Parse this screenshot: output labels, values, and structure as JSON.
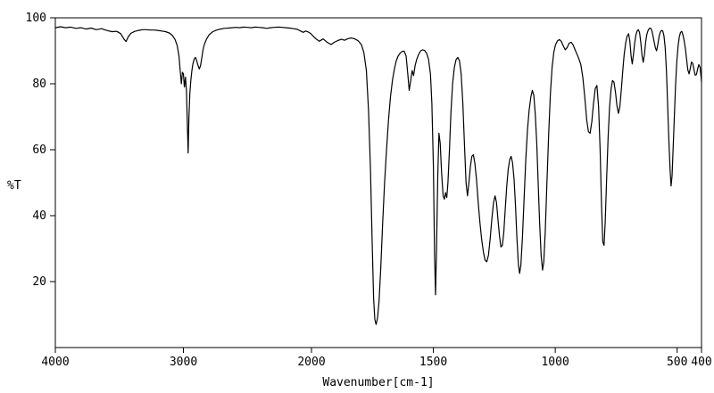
{
  "figure": {
    "background_color": "#ffffff",
    "line_color": "#000000",
    "axis_color": "#000000"
  },
  "chart_data": {
    "type": "line",
    "title": "",
    "xlabel": "Wavenumber[cm-1]",
    "ylabel": "%T",
    "x_axis_reversed": true,
    "x_range": [
      4000,
      400
    ],
    "y_range": [
      0,
      100
    ],
    "x_ticks": [
      4000,
      3000,
      2000,
      1500,
      1000,
      500,
      400
    ],
    "y_ticks": [
      100,
      80,
      60,
      40,
      20
    ],
    "x_scale_break": 2000,
    "x_scale_note": "abscissa compressed 2x above 2000 cm-1 (segmented linear scale, reversed)",
    "grid": false,
    "legend": "none",
    "series_name": "IR transmittance spectrum",
    "points": [
      [
        4000,
        97
      ],
      [
        3960,
        97.3
      ],
      [
        3920,
        97
      ],
      [
        3880,
        97.2
      ],
      [
        3840,
        96.8
      ],
      [
        3800,
        97
      ],
      [
        3760,
        96.6
      ],
      [
        3720,
        96.9
      ],
      [
        3680,
        96.4
      ],
      [
        3640,
        96.7
      ],
      [
        3600,
        96.2
      ],
      [
        3560,
        95.8
      ],
      [
        3520,
        95.9
      ],
      [
        3490,
        95.2
      ],
      [
        3465,
        93.6
      ],
      [
        3448,
        92.8
      ],
      [
        3430,
        94.3
      ],
      [
        3410,
        95.3
      ],
      [
        3380,
        95.9
      ],
      [
        3350,
        96.2
      ],
      [
        3320,
        96.4
      ],
      [
        3290,
        96.4
      ],
      [
        3260,
        96.3
      ],
      [
        3230,
        96.3
      ],
      [
        3200,
        96.2
      ],
      [
        3170,
        96
      ],
      [
        3140,
        95.8
      ],
      [
        3110,
        95.4
      ],
      [
        3085,
        94.6
      ],
      [
        3065,
        93.4
      ],
      [
        3048,
        91.5
      ],
      [
        3035,
        88.5
      ],
      [
        3025,
        84
      ],
      [
        3016,
        80
      ],
      [
        3008,
        83.5
      ],
      [
        3000,
        83
      ],
      [
        2992,
        79
      ],
      [
        2984,
        82
      ],
      [
        2976,
        78
      ],
      [
        2969,
        68
      ],
      [
        2963,
        59
      ],
      [
        2957,
        70
      ],
      [
        2950,
        77
      ],
      [
        2942,
        81
      ],
      [
        2934,
        84
      ],
      [
        2926,
        86
      ],
      [
        2916,
        87.5
      ],
      [
        2906,
        88
      ],
      [
        2896,
        87
      ],
      [
        2886,
        85.5
      ],
      [
        2876,
        84.5
      ],
      [
        2866,
        85.5
      ],
      [
        2856,
        88
      ],
      [
        2846,
        90.5
      ],
      [
        2836,
        92
      ],
      [
        2820,
        93.5
      ],
      [
        2800,
        94.8
      ],
      [
        2770,
        95.8
      ],
      [
        2740,
        96.3
      ],
      [
        2710,
        96.6
      ],
      [
        2680,
        96.8
      ],
      [
        2650,
        96.9
      ],
      [
        2620,
        97
      ],
      [
        2590,
        97.1
      ],
      [
        2560,
        97
      ],
      [
        2530,
        97.2
      ],
      [
        2500,
        97.1
      ],
      [
        2470,
        97
      ],
      [
        2440,
        97.2
      ],
      [
        2410,
        97.1
      ],
      [
        2380,
        97
      ],
      [
        2350,
        96.8
      ],
      [
        2320,
        97
      ],
      [
        2290,
        97.1
      ],
      [
        2260,
        97.2
      ],
      [
        2230,
        97.1
      ],
      [
        2200,
        97
      ],
      [
        2170,
        96.9
      ],
      [
        2140,
        96.7
      ],
      [
        2110,
        96.5
      ],
      [
        2085,
        96
      ],
      [
        2065,
        95.6
      ],
      [
        2045,
        96
      ],
      [
        2025,
        95.7
      ],
      [
        2005,
        95.2
      ],
      [
        1985,
        93.8
      ],
      [
        1968,
        92.9
      ],
      [
        1952,
        93.6
      ],
      [
        1936,
        92.6
      ],
      [
        1920,
        91.9
      ],
      [
        1906,
        92.6
      ],
      [
        1892,
        93.1
      ],
      [
        1878,
        93.5
      ],
      [
        1864,
        93.2
      ],
      [
        1850,
        93.7
      ],
      [
        1836,
        93.9
      ],
      [
        1822,
        93.6
      ],
      [
        1808,
        93
      ],
      [
        1795,
        91.8
      ],
      [
        1785,
        89.5
      ],
      [
        1775,
        84
      ],
      [
        1766,
        72
      ],
      [
        1758,
        54
      ],
      [
        1751,
        32
      ],
      [
        1745,
        15
      ],
      [
        1740,
        8.5
      ],
      [
        1735,
        7
      ],
      [
        1729,
        9
      ],
      [
        1723,
        14
      ],
      [
        1716,
        24
      ],
      [
        1708,
        38
      ],
      [
        1700,
        50
      ],
      [
        1692,
        60
      ],
      [
        1684,
        69
      ],
      [
        1676,
        76
      ],
      [
        1668,
        81
      ],
      [
        1660,
        84.5
      ],
      [
        1652,
        87
      ],
      [
        1644,
        88.5
      ],
      [
        1636,
        89.3
      ],
      [
        1628,
        89.8
      ],
      [
        1620,
        89.9
      ],
      [
        1612,
        88.5
      ],
      [
        1605,
        83
      ],
      [
        1599,
        78
      ],
      [
        1593,
        81
      ],
      [
        1587,
        84
      ],
      [
        1581,
        82.5
      ],
      [
        1575,
        85.5
      ],
      [
        1568,
        87.5
      ],
      [
        1560,
        89
      ],
      [
        1552,
        90
      ],
      [
        1544,
        90.3
      ],
      [
        1536,
        90.1
      ],
      [
        1528,
        89.3
      ],
      [
        1520,
        87.5
      ],
      [
        1512,
        83
      ],
      [
        1506,
        74
      ],
      [
        1500,
        55
      ],
      [
        1495,
        28
      ],
      [
        1491,
        16
      ],
      [
        1487,
        30
      ],
      [
        1482,
        52
      ],
      [
        1477,
        65
      ],
      [
        1472,
        62
      ],
      [
        1466,
        53
      ],
      [
        1460,
        46
      ],
      [
        1455,
        45
      ],
      [
        1450,
        47
      ],
      [
        1445,
        45.5
      ],
      [
        1440,
        50
      ],
      [
        1434,
        60
      ],
      [
        1428,
        71
      ],
      [
        1421,
        80
      ],
      [
        1414,
        85
      ],
      [
        1407,
        87.3
      ],
      [
        1400,
        88
      ],
      [
        1393,
        87
      ],
      [
        1386,
        83
      ],
      [
        1379,
        74
      ],
      [
        1372,
        61
      ],
      [
        1366,
        50
      ],
      [
        1360,
        46
      ],
      [
        1354,
        50
      ],
      [
        1348,
        55
      ],
      [
        1342,
        58
      ],
      [
        1336,
        58.5
      ],
      [
        1330,
        56
      ],
      [
        1323,
        51
      ],
      [
        1316,
        44
      ],
      [
        1309,
        38
      ],
      [
        1302,
        33
      ],
      [
        1295,
        29
      ],
      [
        1288,
        26.5
      ],
      [
        1281,
        26
      ],
      [
        1274,
        28
      ],
      [
        1267,
        33
      ],
      [
        1260,
        39
      ],
      [
        1253,
        44
      ],
      [
        1247,
        46
      ],
      [
        1241,
        44
      ],
      [
        1235,
        39
      ],
      [
        1229,
        34
      ],
      [
        1223,
        30.5
      ],
      [
        1217,
        31
      ],
      [
        1211,
        35
      ],
      [
        1205,
        42
      ],
      [
        1199,
        49
      ],
      [
        1193,
        54
      ],
      [
        1187,
        57
      ],
      [
        1181,
        58
      ],
      [
        1175,
        56
      ],
      [
        1169,
        51
      ],
      [
        1163,
        43
      ],
      [
        1157,
        33
      ],
      [
        1151,
        25
      ],
      [
        1146,
        22.5
      ],
      [
        1141,
        25
      ],
      [
        1135,
        33
      ],
      [
        1128,
        45
      ],
      [
        1121,
        57
      ],
      [
        1114,
        66
      ],
      [
        1107,
        72
      ],
      [
        1100,
        76
      ],
      [
        1094,
        78
      ],
      [
        1088,
        76.5
      ],
      [
        1082,
        71
      ],
      [
        1076,
        62
      ],
      [
        1070,
        50
      ],
      [
        1064,
        38
      ],
      [
        1058,
        28
      ],
      [
        1052,
        23.5
      ],
      [
        1047,
        26
      ],
      [
        1041,
        35
      ],
      [
        1034,
        50
      ],
      [
        1027,
        65
      ],
      [
        1020,
        77
      ],
      [
        1013,
        85
      ],
      [
        1006,
        89.5
      ],
      [
        999,
        91.8
      ],
      [
        991,
        93
      ],
      [
        983,
        93.4
      ],
      [
        975,
        92.8
      ],
      [
        967,
        91.5
      ],
      [
        959,
        90.3
      ],
      [
        951,
        91
      ],
      [
        943,
        92.3
      ],
      [
        935,
        92.6
      ],
      [
        927,
        91.8
      ],
      [
        919,
        90.4
      ],
      [
        911,
        89
      ],
      [
        903,
        87.6
      ],
      [
        895,
        85.8
      ],
      [
        887,
        82
      ],
      [
        879,
        76
      ],
      [
        871,
        69
      ],
      [
        864,
        65.5
      ],
      [
        857,
        65
      ],
      [
        850,
        68.5
      ],
      [
        843,
        74
      ],
      [
        836,
        78.5
      ],
      [
        829,
        79.5
      ],
      [
        822,
        73
      ],
      [
        816,
        60
      ],
      [
        810,
        43
      ],
      [
        805,
        32
      ],
      [
        800,
        31
      ],
      [
        795,
        38
      ],
      [
        789,
        52
      ],
      [
        783,
        64
      ],
      [
        777,
        73
      ],
      [
        771,
        78.5
      ],
      [
        765,
        81
      ],
      [
        759,
        80.5
      ],
      [
        753,
        77.5
      ],
      [
        747,
        73.5
      ],
      [
        741,
        71
      ],
      [
        735,
        73
      ],
      [
        729,
        78
      ],
      [
        723,
        84
      ],
      [
        717,
        89
      ],
      [
        711,
        92.5
      ],
      [
        705,
        94.5
      ],
      [
        699,
        95.2
      ],
      [
        694,
        93
      ],
      [
        689,
        88.5
      ],
      [
        684,
        86
      ],
      [
        679,
        89
      ],
      [
        674,
        92.5
      ],
      [
        669,
        94.8
      ],
      [
        664,
        96
      ],
      [
        659,
        96.4
      ],
      [
        654,
        95.5
      ],
      [
        649,
        92.5
      ],
      [
        644,
        88.5
      ],
      [
        639,
        86.5
      ],
      [
        634,
        89
      ],
      [
        629,
        92.8
      ],
      [
        624,
        95
      ],
      [
        619,
        96.2
      ],
      [
        614,
        96.8
      ],
      [
        609,
        96.9
      ],
      [
        604,
        96.2
      ],
      [
        599,
        94.6
      ],
      [
        594,
        92.6
      ],
      [
        589,
        90.8
      ],
      [
        584,
        90
      ],
      [
        579,
        92
      ],
      [
        574,
        94.4
      ],
      [
        569,
        95.6
      ],
      [
        564,
        96.2
      ],
      [
        559,
        96
      ],
      [
        554,
        94.6
      ],
      [
        549,
        91
      ],
      [
        544,
        84
      ],
      [
        539,
        74
      ],
      [
        534,
        63
      ],
      [
        529,
        54
      ],
      [
        525,
        49
      ],
      [
        521,
        52
      ],
      [
        516,
        61
      ],
      [
        511,
        71
      ],
      [
        506,
        80
      ],
      [
        501,
        87
      ],
      [
        496,
        91.5
      ],
      [
        491,
        94.2
      ],
      [
        486,
        95.6
      ],
      [
        481,
        95.9
      ],
      [
        476,
        94.8
      ],
      [
        471,
        93
      ],
      [
        466,
        90.6
      ],
      [
        461,
        87.4
      ],
      [
        456,
        84.2
      ],
      [
        451,
        83
      ],
      [
        446,
        84.6
      ],
      [
        441,
        86.6
      ],
      [
        436,
        86.2
      ],
      [
        431,
        84.4
      ],
      [
        426,
        82.6
      ],
      [
        421,
        82.8
      ],
      [
        416,
        84.4
      ],
      [
        411,
        85.8
      ],
      [
        406,
        85
      ],
      [
        401,
        81.5
      ],
      [
        400,
        80.5
      ]
    ]
  }
}
